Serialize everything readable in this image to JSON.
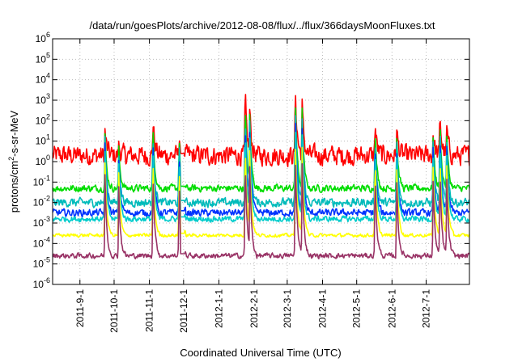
{
  "chart_data": {
    "type": "line",
    "title": "/data/run/goesPlots/archive/2012-08-08/flux/../flux/366daysMoonFluxes.txt",
    "xlabel": "Coordinated Universal Time (UTC)",
    "ylabel": {
      "prefix": "protons/cm",
      "sup": "2",
      "suffix": "-s-sr-MeV"
    },
    "yscale": "log",
    "ylim": [
      1e-06,
      1000000.0
    ],
    "y_ticks": [
      {
        "base": "10",
        "exp": "-6",
        "v": -6
      },
      {
        "base": "10",
        "exp": "-5",
        "v": -5
      },
      {
        "base": "10",
        "exp": "-4",
        "v": -4
      },
      {
        "base": "10",
        "exp": "-3",
        "v": -3
      },
      {
        "base": "10",
        "exp": "-2",
        "v": -2
      },
      {
        "base": "10",
        "exp": "-1",
        "v": -1
      },
      {
        "base": "10",
        "exp": "0",
        "v": 0
      },
      {
        "base": "10",
        "exp": "1",
        "v": 1
      },
      {
        "base": "10",
        "exp": "2",
        "v": 2
      },
      {
        "base": "10",
        "exp": "3",
        "v": 3
      },
      {
        "base": "10",
        "exp": "4",
        "v": 4
      },
      {
        "base": "10",
        "exp": "5",
        "v": 5
      },
      {
        "base": "10",
        "exp": "6",
        "v": 6
      }
    ],
    "xlim": [
      "2011-08-08",
      "2012-08-08"
    ],
    "x_ticks": [
      {
        "label": "2011-9-1",
        "date": "2011-09-01"
      },
      {
        "label": "2011-10-1",
        "date": "2011-10-01"
      },
      {
        "label": "2011-11-1",
        "date": "2011-11-01"
      },
      {
        "label": "2011-12-1",
        "date": "2011-12-01"
      },
      {
        "label": "2012-1-1",
        "date": "2012-01-01"
      },
      {
        "label": "2012-2-1",
        "date": "2012-02-01"
      },
      {
        "label": "2012-3-1",
        "date": "2012-03-01"
      },
      {
        "label": "2012-4-1",
        "date": "2012-04-01"
      },
      {
        "label": "2012-5-1",
        "date": "2012-05-01"
      },
      {
        "label": "2012-6-1",
        "date": "2012-06-01"
      },
      {
        "label": "2012-7-1",
        "date": "2012-07-01"
      }
    ],
    "grid": true,
    "series": [
      {
        "color": "#ff0000",
        "baseline_log10": 0.3,
        "noise": 0.7
      },
      {
        "color": "#00dd00",
        "baseline_log10": -1.3,
        "noise": 0.25
      },
      {
        "color": "#00bbbb",
        "baseline_log10": -2.0,
        "noise": 0.3
      },
      {
        "color": "#0033ff",
        "baseline_log10": -2.5,
        "noise": 0.25
      },
      {
        "color": "#00cccc",
        "baseline_log10": -2.8,
        "noise": 0.2
      },
      {
        "color": "#ffff00",
        "baseline_log10": -3.6,
        "noise": 0.12
      },
      {
        "color": "#993366",
        "baseline_log10": -4.6,
        "noise": 0.18
      }
    ],
    "events": [
      {
        "date": "2011-09-23",
        "peak_log10": 1.5
      },
      {
        "date": "2011-10-05",
        "peak_log10": 0.8
      },
      {
        "date": "2011-11-04",
        "peak_log10": 2.2
      },
      {
        "date": "2011-11-27",
        "peak_log10": 1.5
      },
      {
        "date": "2012-01-24",
        "peak_log10": 3.4
      },
      {
        "date": "2012-01-28",
        "peak_log10": 2.6
      },
      {
        "date": "2012-03-08",
        "peak_log10": 3.9
      },
      {
        "date": "2012-03-14",
        "peak_log10": 2.9
      },
      {
        "date": "2012-05-17",
        "peak_log10": 2.0
      },
      {
        "date": "2012-06-05",
        "peak_log10": 1.7
      },
      {
        "date": "2012-07-07",
        "peak_log10": 1.5
      },
      {
        "date": "2012-07-13",
        "peak_log10": 2.4
      },
      {
        "date": "2012-07-19",
        "peak_log10": 1.7
      }
    ]
  }
}
